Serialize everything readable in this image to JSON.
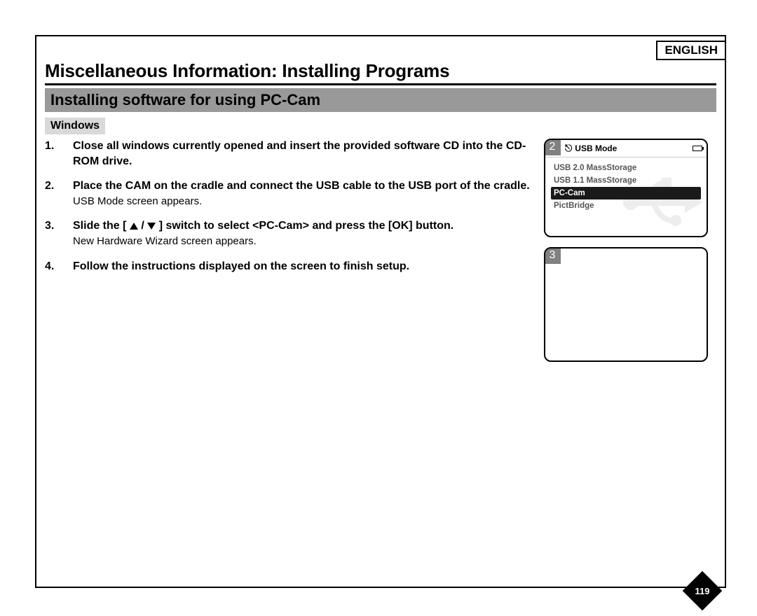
{
  "language_label": "ENGLISH",
  "page_title": "Miscellaneous Information: Installing Programs",
  "section_title": "Installing software for using PC-Cam",
  "os_label": "Windows",
  "steps": [
    {
      "num": "1.",
      "bold": "Close all windows currently opened and insert the provided software CD into the CD-ROM drive.",
      "note": ""
    },
    {
      "num": "2.",
      "bold": "Place the CAM on the cradle and connect the USB cable to the USB port of the cradle.",
      "note": "USB Mode screen appears."
    },
    {
      "num": "3.",
      "bold_pre": "Slide the [",
      "bold_post": "] switch to select <PC-Cam> and press the [OK] button.",
      "note": "New Hardware Wizard screen appears."
    },
    {
      "num": "4.",
      "bold": "Follow the instructions displayed on the screen to finish setup.",
      "note": ""
    }
  ],
  "screen2": {
    "num": "2",
    "header_title": "USB Mode",
    "items": [
      "USB 2.0 MassStorage",
      "USB 1.1 MassStorage",
      "PC-Cam",
      "PictBridge"
    ],
    "selected_index": 2
  },
  "screen3_num": "3",
  "page_number": "119",
  "colors": {
    "subtitle_bg": "#999999",
    "os_bg": "#d9d9d9",
    "screen_num_bg": "#808080",
    "selected_bg": "#1a1a1a",
    "menu_text": "#555555"
  }
}
